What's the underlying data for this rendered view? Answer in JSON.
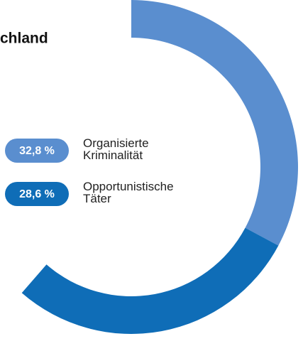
{
  "chart_data": {
    "type": "donut",
    "title": "chland",
    "series": [
      {
        "name": "Organisierte Kriminalität",
        "color": "#5a8ecf",
        "values": [
          32.8
        ],
        "value_labels": [
          "32,8 %"
        ]
      },
      {
        "name": "Opportunistische Täter",
        "color": "#0f6db7",
        "values": [
          28.6
        ],
        "value_labels": [
          "28,6 %"
        ]
      }
    ]
  }
}
